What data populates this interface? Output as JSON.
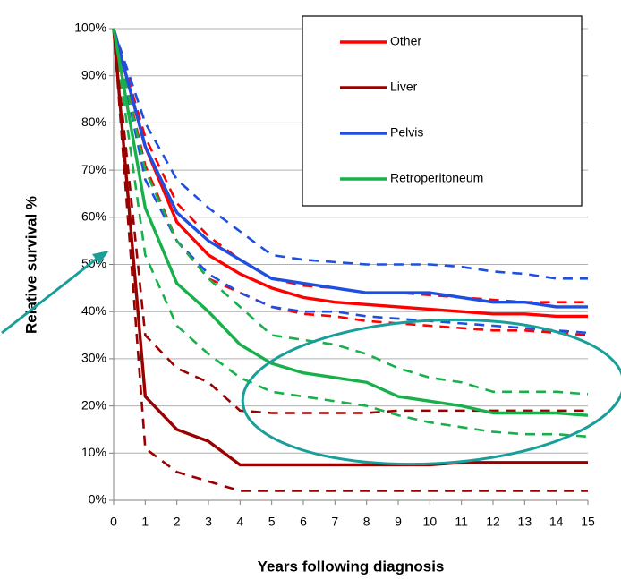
{
  "chart_data": {
    "type": "line",
    "x_label": "Years following diagnosis",
    "y_label": "Relative survival %",
    "x": [
      0,
      1,
      2,
      3,
      4,
      5,
      6,
      7,
      8,
      9,
      10,
      11,
      12,
      13,
      14,
      15
    ],
    "xlim": [
      0,
      15
    ],
    "xticks": [
      0,
      1,
      2,
      3,
      4,
      5,
      6,
      7,
      8,
      9,
      10,
      11,
      12,
      13,
      14,
      15
    ],
    "ylim": [
      0,
      100
    ],
    "yticks": [
      {
        "value": 0,
        "label": "0%"
      },
      {
        "value": 10,
        "label": "10%"
      },
      {
        "value": 20,
        "label": "20%"
      },
      {
        "value": 30,
        "label": "30%"
      },
      {
        "value": 40,
        "label": "40%"
      },
      {
        "value": 50,
        "label": "50%"
      },
      {
        "value": 60,
        "label": "60%"
      },
      {
        "value": 70,
        "label": "70%"
      },
      {
        "value": 80,
        "label": "80%"
      },
      {
        "value": 90,
        "label": "90%"
      },
      {
        "value": 100,
        "label": "100%"
      }
    ],
    "grid": true,
    "legend": "top-right",
    "series": [
      {
        "name": "Other",
        "color": "#ff0000",
        "values": [
          100,
          75,
          59,
          52,
          48,
          45,
          43,
          42,
          41.5,
          41,
          40.5,
          40,
          39.5,
          39.5,
          39,
          39
        ],
        "upper": [
          100,
          77,
          63,
          56,
          51,
          47,
          45.5,
          45,
          44,
          44,
          43.5,
          43,
          42.5,
          42,
          42,
          42
        ],
        "lower": [
          100,
          71,
          55,
          47,
          44,
          41,
          39.5,
          39,
          38,
          37.5,
          37,
          36.5,
          36,
          36,
          35.5,
          35
        ]
      },
      {
        "name": "Liver",
        "color": "#990000",
        "values": [
          100,
          22,
          15,
          12.5,
          7.5,
          7.5,
          7.5,
          7.5,
          7.5,
          7.5,
          7.5,
          8,
          8,
          8,
          8,
          8
        ],
        "upper": [
          100,
          35,
          28,
          25,
          19,
          18.5,
          18.5,
          18.5,
          18.5,
          19,
          19,
          19,
          19,
          19,
          19,
          19
        ],
        "lower": [
          100,
          11,
          6,
          4,
          2,
          2,
          2,
          2,
          2,
          2,
          2,
          2,
          2,
          2,
          2,
          2
        ]
      },
      {
        "name": "Pelvis",
        "color": "#1f4fe0",
        "values": [
          100,
          75,
          61,
          55,
          51,
          47,
          46,
          45,
          44,
          44,
          44,
          43,
          42,
          42,
          41,
          41
        ],
        "upper": [
          100,
          80,
          68,
          62,
          57,
          52,
          51,
          50.5,
          50,
          50,
          50,
          49.5,
          48.5,
          48,
          47,
          47
        ],
        "lower": [
          100,
          68,
          55,
          48,
          44,
          41,
          40,
          40,
          39,
          38.5,
          38,
          37.5,
          37,
          36.5,
          36,
          35.5
        ]
      },
      {
        "name": "Retroperitoneum",
        "color": "#18b04a",
        "values": [
          100,
          62,
          46,
          40,
          33,
          29,
          27,
          26,
          25,
          22,
          21,
          20,
          18.5,
          18.5,
          18.5,
          18
        ],
        "upper": [
          100,
          70,
          55,
          47,
          41,
          35,
          34,
          33,
          31,
          28,
          26,
          25,
          23,
          23,
          23,
          22.5
        ],
        "lower": [
          100,
          52,
          37,
          31,
          26,
          23,
          22,
          21,
          20,
          18,
          16.5,
          15.5,
          14.5,
          14,
          14,
          13.5
        ]
      }
    ]
  }
}
